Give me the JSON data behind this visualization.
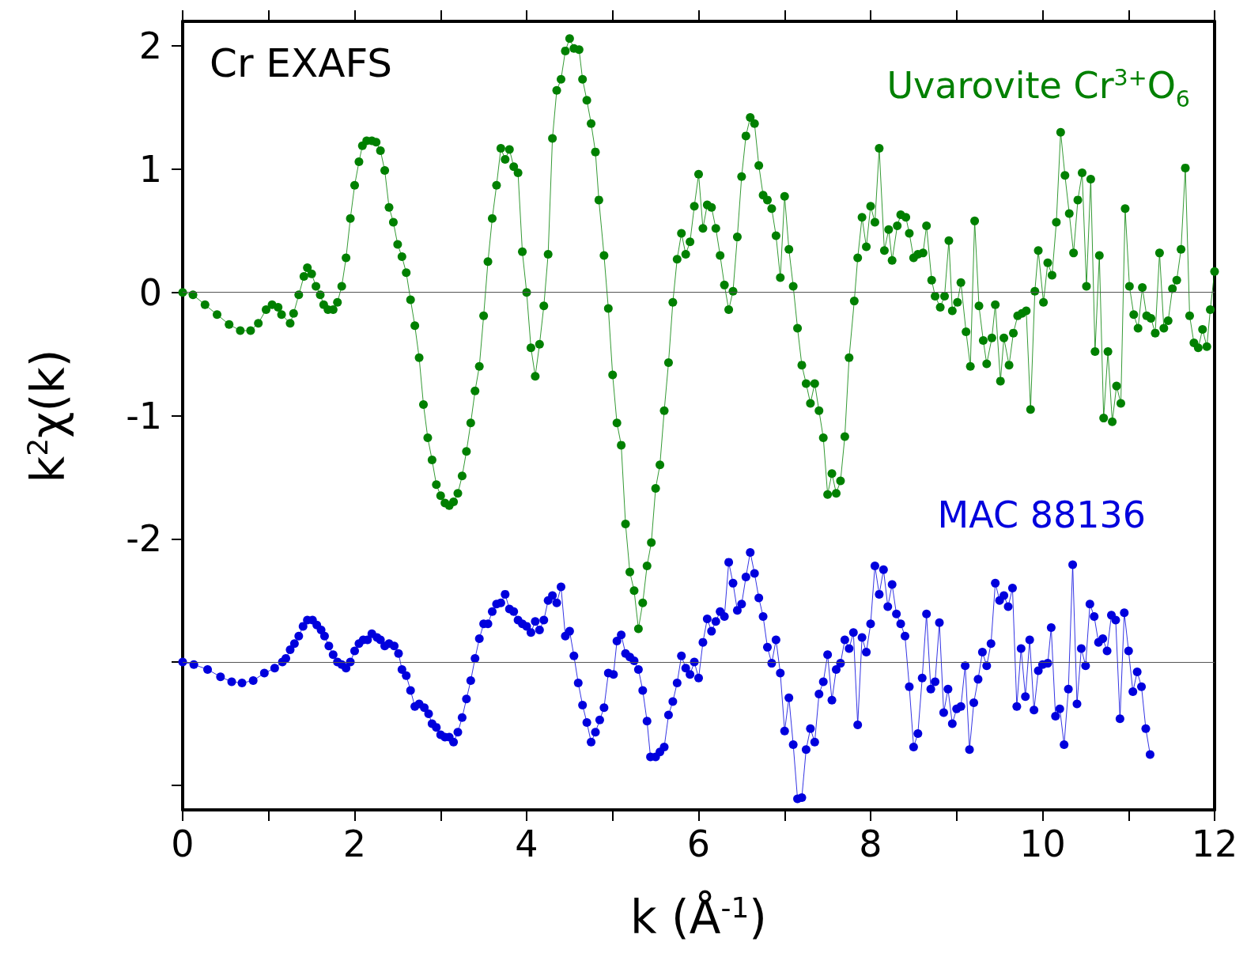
{
  "chart_data": {
    "type": "line",
    "xlabel": "k (Å$^{-1}$)",
    "ylabel": "k$^{2}$χ(k)",
    "annotations": [
      "Cr EXAFS"
    ],
    "xlim": [
      0,
      12
    ],
    "xticks": [
      0,
      {
        "value": 1,
        "label": null
      },
      2,
      {
        "value": 3,
        "label": null
      },
      4,
      {
        "value": 5,
        "label": null
      },
      6,
      {
        "value": 7,
        "label": null
      },
      8,
      {
        "value": 9,
        "label": null
      },
      10,
      {
        "value": 11,
        "label": null
      },
      12
    ],
    "ylim": [
      -4.2,
      2.2
    ],
    "yticks": [
      2,
      1,
      0,
      -1,
      -2,
      {
        "value": -3,
        "label": null
      },
      {
        "value": -4,
        "label": null
      }
    ],
    "grid": false,
    "legend": false,
    "marker": "circle",
    "line_style": "solid",
    "ref_lines": [
      {
        "axis": "y",
        "value": 0,
        "color": "#555555"
      },
      {
        "axis": "y",
        "value": -3,
        "color": "#555555"
      }
    ],
    "series": [
      {
        "name": "Uvarovite Cr$^{3+}$O$_{6}$",
        "color": "#008000",
        "x": [
          0,
          0.12,
          0.26,
          0.4,
          0.54,
          0.67,
          0.79,
          0.88,
          0.97,
          1.04,
          1.11,
          1.15,
          1.25,
          1.29,
          1.35,
          1.41,
          1.45,
          1.5,
          1.55,
          1.6,
          1.64,
          1.69,
          1.75,
          1.8,
          1.85,
          1.9,
          1.95,
          2.0,
          2.05,
          2.09,
          2.14,
          2.2,
          2.25,
          2.3,
          2.35,
          2.4,
          2.45,
          2.5,
          2.55,
          2.6,
          2.65,
          2.7,
          2.75,
          2.8,
          2.85,
          2.9,
          2.95,
          3.0,
          3.05,
          3.1,
          3.15,
          3.2,
          3.25,
          3.3,
          3.35,
          3.4,
          3.45,
          3.5,
          3.55,
          3.6,
          3.65,
          3.7,
          3.75,
          3.8,
          3.85,
          3.9,
          3.95,
          4.0,
          4.05,
          4.1,
          4.15,
          4.2,
          4.25,
          4.3,
          4.35,
          4.4,
          4.45,
          4.5,
          4.55,
          4.61,
          4.65,
          4.7,
          4.75,
          4.8,
          4.84,
          4.9,
          4.95,
          5.0,
          5.05,
          5.1,
          5.15,
          5.2,
          5.25,
          5.3,
          5.35,
          5.4,
          5.45,
          5.5,
          5.55,
          5.6,
          5.65,
          5.7,
          5.75,
          5.8,
          5.85,
          5.9,
          5.95,
          6.0,
          6.05,
          6.1,
          6.15,
          6.2,
          6.25,
          6.3,
          6.35,
          6.4,
          6.45,
          6.5,
          6.55,
          6.6,
          6.65,
          6.7,
          6.75,
          6.8,
          6.85,
          6.9,
          6.95,
          7.0,
          7.05,
          7.1,
          7.15,
          7.2,
          7.25,
          7.3,
          7.35,
          7.4,
          7.45,
          7.5,
          7.55,
          7.6,
          7.65,
          7.7,
          7.75,
          7.81,
          7.85,
          7.9,
          7.95,
          8.0,
          8.05,
          8.1,
          8.16,
          8.21,
          8.25,
          8.31,
          8.35,
          8.41,
          8.45,
          8.5,
          8.55,
          8.61,
          8.65,
          8.71,
          8.75,
          8.81,
          8.86,
          8.91,
          8.95,
          9.01,
          9.05,
          9.11,
          9.16,
          9.21,
          9.26,
          9.31,
          9.35,
          9.41,
          9.45,
          9.51,
          9.55,
          9.61,
          9.66,
          9.71,
          9.76,
          9.81,
          9.86,
          9.91,
          9.95,
          10.01,
          10.06,
          10.11,
          10.16,
          10.21,
          10.26,
          10.31,
          10.36,
          10.41,
          10.46,
          10.51,
          10.56,
          10.61,
          10.66,
          10.71,
          10.76,
          10.81,
          10.86,
          10.91,
          10.96,
          11.01,
          11.06,
          11.11,
          11.16,
          11.21,
          11.26,
          11.31,
          11.36,
          11.41,
          11.46,
          11.51,
          11.56,
          11.61,
          11.66,
          11.71,
          11.76,
          11.81,
          11.86,
          11.91,
          11.95,
          12.0
        ],
        "values": [
          0,
          -0.02,
          -0.1,
          -0.18,
          -0.26,
          -0.31,
          -0.31,
          -0.25,
          -0.14,
          -0.1,
          -0.12,
          -0.18,
          -0.25,
          -0.17,
          -0.02,
          0.13,
          0.2,
          0.15,
          0.05,
          -0.02,
          -0.1,
          -0.14,
          -0.14,
          -0.08,
          0.05,
          0.28,
          0.6,
          0.87,
          1.06,
          1.19,
          1.23,
          1.23,
          1.22,
          1.15,
          0.99,
          0.69,
          0.57,
          0.39,
          0.29,
          0.16,
          -0.06,
          -0.27,
          -0.53,
          -0.91,
          -1.18,
          -1.36,
          -1.56,
          -1.65,
          -1.71,
          -1.73,
          -1.7,
          -1.63,
          -1.49,
          -1.29,
          -1.06,
          -0.8,
          -0.6,
          -0.19,
          0.25,
          0.6,
          0.87,
          1.17,
          1.08,
          1.16,
          1.02,
          0.97,
          0.33,
          0.0,
          -0.45,
          -0.68,
          -0.42,
          -0.11,
          0.31,
          1.25,
          1.64,
          1.73,
          1.96,
          2.06,
          1.98,
          1.97,
          1.73,
          1.56,
          1.37,
          1.14,
          0.75,
          0.3,
          -0.13,
          -0.67,
          -1.06,
          -1.24,
          -1.88,
          -2.27,
          -2.42,
          -2.73,
          -2.52,
          -2.22,
          -2.03,
          -1.59,
          -1.4,
          -0.96,
          -0.57,
          -0.08,
          0.27,
          0.48,
          0.31,
          0.41,
          0.7,
          0.96,
          0.52,
          0.71,
          0.69,
          0.52,
          0.3,
          0.06,
          -0.14,
          0.01,
          0.45,
          0.94,
          1.27,
          1.42,
          1.37,
          1.03,
          0.79,
          0.75,
          0.68,
          0.46,
          0.12,
          0.78,
          0.35,
          0.05,
          -0.29,
          -0.59,
          -0.74,
          -0.9,
          -0.74,
          -0.96,
          -1.18,
          -1.64,
          -1.47,
          -1.63,
          -1.53,
          -1.17,
          -0.53,
          -0.07,
          0.28,
          0.61,
          0.37,
          0.7,
          0.57,
          1.17,
          0.34,
          0.51,
          0.26,
          0.54,
          0.63,
          0.61,
          0.48,
          0.28,
          0.31,
          0.32,
          0.54,
          0.1,
          -0.03,
          -0.12,
          -0.03,
          0.42,
          -0.15,
          -0.08,
          0.08,
          -0.32,
          -0.6,
          0.58,
          -0.11,
          -0.39,
          -0.58,
          -0.37,
          -0.1,
          -0.72,
          -0.37,
          -0.59,
          -0.33,
          -0.19,
          -0.17,
          -0.15,
          -0.95,
          0.01,
          0.34,
          -0.08,
          0.24,
          0.14,
          0.57,
          1.3,
          0.95,
          0.64,
          0.32,
          0.75,
          0.97,
          0.05,
          0.92,
          -0.48,
          0.3,
          -1.02,
          -0.48,
          -1.05,
          -0.76,
          -0.9,
          0.68,
          0.05,
          -0.18,
          -0.29,
          0.04,
          -0.19,
          -0.21,
          -0.33,
          0.32,
          -0.29,
          -0.23,
          0.03,
          0.1,
          0.35,
          1.01,
          -0.19,
          -0.41,
          -0.45,
          -0.3,
          -0.44,
          -0.14,
          0.17
        ]
      },
      {
        "name": "MAC 88136",
        "color": "#0000dd",
        "x": [
          0,
          0.13,
          0.29,
          0.44,
          0.57,
          0.69,
          0.82,
          0.95,
          1.07,
          1.16,
          1.2,
          1.25,
          1.3,
          1.35,
          1.4,
          1.45,
          1.51,
          1.56,
          1.61,
          1.65,
          1.7,
          1.75,
          1.8,
          1.85,
          1.9,
          1.95,
          2.0,
          2.05,
          2.1,
          2.15,
          2.2,
          2.26,
          2.3,
          2.35,
          2.4,
          2.46,
          2.51,
          2.55,
          2.6,
          2.65,
          2.7,
          2.75,
          2.81,
          2.86,
          2.9,
          2.95,
          3.0,
          3.05,
          3.1,
          3.15,
          3.2,
          3.25,
          3.3,
          3.35,
          3.4,
          3.45,
          3.5,
          3.55,
          3.6,
          3.65,
          3.7,
          3.75,
          3.8,
          3.85,
          3.9,
          3.95,
          4.0,
          4.05,
          4.1,
          4.15,
          4.2,
          4.25,
          4.3,
          4.35,
          4.4,
          4.45,
          4.5,
          4.55,
          4.6,
          4.65,
          4.7,
          4.75,
          4.8,
          4.85,
          4.9,
          4.95,
          5.01,
          5.05,
          5.1,
          5.15,
          5.2,
          5.25,
          5.3,
          5.35,
          5.4,
          5.44,
          5.5,
          5.55,
          5.6,
          5.65,
          5.7,
          5.75,
          5.8,
          5.85,
          5.9,
          5.95,
          6.0,
          6.05,
          6.1,
          6.15,
          6.2,
          6.25,
          6.3,
          6.35,
          6.4,
          6.45,
          6.5,
          6.55,
          6.6,
          6.65,
          6.7,
          6.75,
          6.8,
          6.85,
          6.9,
          6.95,
          7.0,
          7.05,
          7.1,
          7.15,
          7.2,
          7.25,
          7.3,
          7.35,
          7.4,
          7.45,
          7.5,
          7.55,
          7.6,
          7.65,
          7.7,
          7.75,
          7.8,
          7.85,
          7.9,
          7.95,
          8.0,
          8.05,
          8.1,
          8.15,
          8.2,
          8.25,
          8.3,
          8.35,
          8.4,
          8.45,
          8.5,
          8.55,
          8.6,
          8.65,
          8.7,
          8.75,
          8.8,
          8.85,
          8.9,
          8.95,
          9.0,
          9.05,
          9.1,
          9.15,
          9.2,
          9.25,
          9.3,
          9.35,
          9.4,
          9.45,
          9.5,
          9.55,
          9.6,
          9.65,
          9.7,
          9.75,
          9.8,
          9.85,
          9.9,
          9.95,
          10.0,
          10.06,
          10.1,
          10.15,
          10.2,
          10.25,
          10.3,
          10.35,
          10.4,
          10.45,
          10.5,
          10.55,
          10.6,
          10.65,
          10.7,
          10.75,
          10.8,
          10.85,
          10.9,
          10.95,
          11.0,
          11.05,
          11.1,
          11.15,
          11.2,
          11.25
        ],
        "values": [
          -3.0,
          -3.02,
          -3.06,
          -3.12,
          -3.16,
          -3.17,
          -3.15,
          -3.09,
          -3.05,
          -3.0,
          -2.97,
          -2.9,
          -2.85,
          -2.79,
          -2.71,
          -2.66,
          -2.66,
          -2.7,
          -2.74,
          -2.79,
          -2.87,
          -2.94,
          -3.0,
          -3.02,
          -3.05,
          -3.0,
          -2.91,
          -2.85,
          -2.82,
          -2.82,
          -2.77,
          -2.8,
          -2.82,
          -2.87,
          -2.85,
          -2.87,
          -2.93,
          -3.06,
          -3.11,
          -3.23,
          -3.36,
          -3.34,
          -3.37,
          -3.42,
          -3.5,
          -3.53,
          -3.59,
          -3.61,
          -3.61,
          -3.65,
          -3.57,
          -3.45,
          -3.3,
          -3.15,
          -2.97,
          -2.81,
          -2.69,
          -2.69,
          -2.59,
          -2.53,
          -2.52,
          -2.45,
          -2.57,
          -2.59,
          -2.66,
          -2.69,
          -2.71,
          -2.76,
          -2.67,
          -2.74,
          -2.66,
          -2.5,
          -2.46,
          -2.52,
          -2.39,
          -2.79,
          -2.75,
          -2.95,
          -3.17,
          -3.35,
          -3.49,
          -3.65,
          -3.57,
          -3.47,
          -3.37,
          -3.09,
          -3.1,
          -2.83,
          -2.78,
          -2.93,
          -2.96,
          -2.99,
          -3.06,
          -3.23,
          -3.48,
          -3.77,
          -3.77,
          -3.73,
          -3.69,
          -3.43,
          -3.32,
          -3.17,
          -2.95,
          -3.05,
          -3.1,
          -3.0,
          -3.13,
          -2.84,
          -2.65,
          -2.75,
          -2.67,
          -2.59,
          -2.63,
          -2.19,
          -2.36,
          -2.58,
          -2.53,
          -2.31,
          -2.11,
          -2.28,
          -2.48,
          -2.63,
          -2.88,
          -3.01,
          -2.82,
          -3.09,
          -3.56,
          -3.29,
          -3.67,
          -4.11,
          -4.1,
          -3.71,
          -3.54,
          -3.65,
          -3.26,
          -3.16,
          -2.94,
          -3.31,
          -3.06,
          -3.01,
          -2.82,
          -2.89,
          -2.76,
          -3.51,
          -2.8,
          -2.92,
          -2.69,
          -2.22,
          -2.45,
          -2.25,
          -2.55,
          -2.37,
          -2.61,
          -2.69,
          -2.79,
          -3.2,
          -3.69,
          -3.58,
          -3.13,
          -2.61,
          -3.22,
          -3.16,
          -2.68,
          -3.41,
          -3.22,
          -3.5,
          -3.38,
          -3.36,
          -3.03,
          -3.71,
          -3.33,
          -3.14,
          -2.92,
          -3.03,
          -2.85,
          -2.36,
          -2.5,
          -2.46,
          -2.55,
          -2.4,
          -3.36,
          -2.89,
          -3.28,
          -2.82,
          -3.39,
          -3.07,
          -3.02,
          -3.01,
          -2.72,
          -3.44,
          -3.38,
          -3.67,
          -3.22,
          -2.21,
          -3.34,
          -2.89,
          -3.03,
          -2.53,
          -2.63,
          -2.84,
          -2.81,
          -2.91,
          -2.62,
          -2.66,
          -3.46,
          -2.6,
          -2.91,
          -3.24,
          -3.08,
          -3.2,
          -3.54,
          -3.75
        ]
      }
    ]
  }
}
